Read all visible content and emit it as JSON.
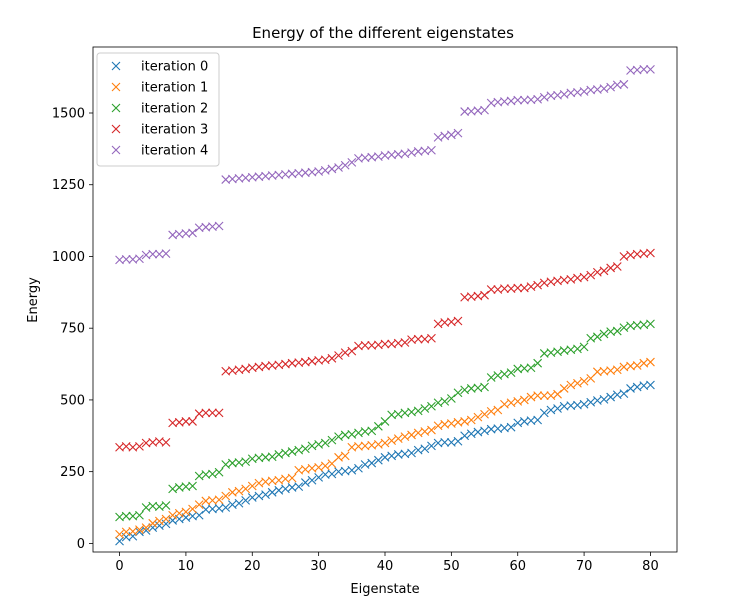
{
  "chart_data": {
    "type": "scatter",
    "marker": "x",
    "title": "Energy of the different eigenstates",
    "xlabel": "Eigenstate",
    "ylabel": "Energy",
    "xlim": [
      -4,
      84
    ],
    "ylim": [
      -30,
      1730
    ],
    "xticks": [
      0,
      10,
      20,
      30,
      40,
      50,
      60,
      70,
      80
    ],
    "yticks": [
      0,
      250,
      500,
      750,
      1000,
      1250,
      1500
    ],
    "grid": false,
    "legend_position": "top-left",
    "x": [
      0,
      1,
      2,
      3,
      4,
      5,
      6,
      7,
      8,
      9,
      10,
      11,
      12,
      13,
      14,
      15,
      16,
      17,
      18,
      19,
      20,
      21,
      22,
      23,
      24,
      25,
      26,
      27,
      28,
      29,
      30,
      31,
      32,
      33,
      34,
      35,
      36,
      37,
      38,
      39,
      40,
      41,
      42,
      43,
      44,
      45,
      46,
      47,
      48,
      49,
      50,
      51,
      52,
      53,
      54,
      55,
      56,
      57,
      58,
      59,
      60,
      61,
      62,
      63,
      64,
      65,
      66,
      67,
      68,
      69,
      70,
      71,
      72,
      73,
      74,
      75,
      76,
      77,
      78,
      79,
      80
    ],
    "series": [
      {
        "name": "iteration 0",
        "color": "#1f77b4",
        "values": [
          8,
          22,
          25,
          40,
          45,
          55,
          62,
          68,
          80,
          85,
          90,
          95,
          98,
          118,
          120,
          122,
          125,
          135,
          140,
          150,
          160,
          165,
          170,
          178,
          185,
          190,
          195,
          198,
          212,
          220,
          230,
          240,
          242,
          250,
          252,
          255,
          262,
          275,
          280,
          290,
          300,
          305,
          310,
          312,
          315,
          325,
          330,
          340,
          350,
          352,
          352,
          356,
          375,
          382,
          388,
          392,
          398,
          400,
          402,
          405,
          420,
          425,
          428,
          430,
          455,
          465,
          470,
          478,
          480,
          482,
          485,
          492,
          498,
          502,
          510,
          518,
          522,
          540,
          545,
          550,
          552
        ]
      },
      {
        "name": "iteration 1",
        "color": "#ff7f0e",
        "values": [
          32,
          40,
          42,
          48,
          55,
          70,
          78,
          85,
          98,
          105,
          110,
          120,
          135,
          148,
          150,
          152,
          165,
          178,
          182,
          190,
          200,
          210,
          215,
          218,
          220,
          225,
          228,
          255,
          258,
          262,
          265,
          270,
          278,
          300,
          305,
          335,
          338,
          340,
          342,
          345,
          350,
          358,
          365,
          372,
          378,
          385,
          390,
          395,
          410,
          415,
          418,
          422,
          425,
          430,
          440,
          450,
          460,
          465,
          485,
          490,
          495,
          500,
          510,
          515,
          515,
          515,
          520,
          540,
          552,
          558,
          565,
          575,
          598,
          600,
          602,
          605,
          615,
          618,
          620,
          628,
          632
        ]
      },
      {
        "name": "iteration 2",
        "color": "#2ca02c",
        "values": [
          92,
          95,
          95,
          98,
          125,
          130,
          128,
          132,
          190,
          195,
          198,
          200,
          235,
          240,
          242,
          248,
          275,
          280,
          282,
          285,
          295,
          298,
          300,
          302,
          310,
          315,
          320,
          325,
          330,
          340,
          345,
          350,
          360,
          372,
          378,
          380,
          385,
          390,
          392,
          408,
          425,
          448,
          450,
          455,
          458,
          462,
          470,
          478,
          490,
          495,
          505,
          525,
          535,
          540,
          542,
          545,
          578,
          585,
          590,
          595,
          608,
          610,
          612,
          628,
          662,
          665,
          668,
          672,
          675,
          678,
          685,
          715,
          720,
          730,
          738,
          740,
          752,
          758,
          760,
          762,
          765
        ]
      },
      {
        "name": "iteration 3",
        "color": "#d62728",
        "values": [
          335,
          338,
          335,
          338,
          350,
          352,
          355,
          352,
          420,
          422,
          425,
          425,
          452,
          455,
          455,
          455,
          600,
          602,
          605,
          608,
          612,
          615,
          618,
          620,
          622,
          625,
          628,
          630,
          632,
          635,
          638,
          640,
          645,
          655,
          665,
          670,
          688,
          690,
          690,
          692,
          695,
          695,
          698,
          700,
          710,
          712,
          712,
          715,
          765,
          770,
          772,
          775,
          858,
          860,
          862,
          865,
          885,
          885,
          888,
          888,
          890,
          890,
          895,
          900,
          908,
          912,
          915,
          918,
          920,
          925,
          928,
          935,
          945,
          950,
          960,
          965,
          1000,
          1005,
          1008,
          1010,
          1012
        ]
      },
      {
        "name": "iteration 4",
        "color": "#9467bd",
        "values": [
          988,
          990,
          990,
          992,
          1005,
          1008,
          1008,
          1010,
          1075,
          1078,
          1080,
          1082,
          1100,
          1102,
          1104,
          1106,
          1268,
          1270,
          1272,
          1274,
          1276,
          1278,
          1280,
          1282,
          1284,
          1286,
          1288,
          1290,
          1292,
          1294,
          1296,
          1300,
          1305,
          1310,
          1318,
          1328,
          1342,
          1344,
          1346,
          1348,
          1352,
          1354,
          1356,
          1358,
          1362,
          1366,
          1368,
          1370,
          1415,
          1420,
          1424,
          1430,
          1505,
          1506,
          1508,
          1510,
          1535,
          1538,
          1540,
          1542,
          1545,
          1545,
          1546,
          1548,
          1555,
          1560,
          1562,
          1565,
          1570,
          1572,
          1575,
          1580,
          1582,
          1585,
          1590,
          1598,
          1600,
          1648,
          1650,
          1652,
          1652
        ]
      }
    ]
  }
}
